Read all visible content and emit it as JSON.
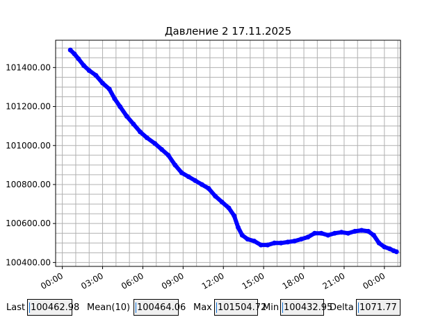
{
  "chart_data": {
    "type": "scatter",
    "title": "Давление 2 17.11.2025",
    "xlabel": "",
    "ylabel": "",
    "x_ticks": [
      "00:00",
      "03:00",
      "06:00",
      "09:00",
      "12:00",
      "15:00",
      "18:00",
      "21:00",
      "00:00"
    ],
    "x_tick_hours": [
      0,
      3,
      6,
      9,
      12,
      15,
      18,
      21,
      24
    ],
    "xlim_hours": [
      -0.5,
      25.2
    ],
    "y_ticks": [
      "100400.00",
      "100600.00",
      "100800.00",
      "101000.00",
      "101200.00",
      "101400.00"
    ],
    "y_tick_values": [
      100400,
      100600,
      100800,
      101000,
      101200,
      101400
    ],
    "ylim": [
      100380,
      101540
    ],
    "grid": true,
    "series_color": "#0000ff",
    "points": [
      [
        0.6,
        101490
      ],
      [
        0.9,
        101470
      ],
      [
        1.2,
        101445
      ],
      [
        1.6,
        101410
      ],
      [
        2.0,
        101385
      ],
      [
        2.5,
        101360
      ],
      [
        3.0,
        101320
      ],
      [
        3.5,
        101290
      ],
      [
        3.9,
        101240
      ],
      [
        4.3,
        101200
      ],
      [
        4.8,
        101150
      ],
      [
        5.3,
        101110
      ],
      [
        5.8,
        101070
      ],
      [
        6.3,
        101040
      ],
      [
        6.9,
        101010
      ],
      [
        7.4,
        100980
      ],
      [
        7.9,
        100950
      ],
      [
        8.4,
        100900
      ],
      [
        8.9,
        100860
      ],
      [
        9.4,
        100840
      ],
      [
        9.9,
        100820
      ],
      [
        10.4,
        100800
      ],
      [
        10.9,
        100780
      ],
      [
        11.4,
        100740
      ],
      [
        11.9,
        100710
      ],
      [
        12.4,
        100680
      ],
      [
        12.8,
        100640
      ],
      [
        13.1,
        100580
      ],
      [
        13.4,
        100540
      ],
      [
        13.8,
        100520
      ],
      [
        14.3,
        100510
      ],
      [
        14.8,
        100490
      ],
      [
        15.3,
        100490
      ],
      [
        15.8,
        100500
      ],
      [
        16.3,
        100500
      ],
      [
        16.8,
        100505
      ],
      [
        17.3,
        100510
      ],
      [
        17.8,
        100520
      ],
      [
        18.3,
        100530
      ],
      [
        18.8,
        100550
      ],
      [
        19.3,
        100550
      ],
      [
        19.8,
        100540
      ],
      [
        20.3,
        100550
      ],
      [
        20.8,
        100555
      ],
      [
        21.3,
        100550
      ],
      [
        21.8,
        100560
      ],
      [
        22.3,
        100565
      ],
      [
        22.8,
        100560
      ],
      [
        23.2,
        100540
      ],
      [
        23.6,
        100500
      ],
      [
        24.0,
        100480
      ],
      [
        24.4,
        100470
      ],
      [
        24.7,
        100460
      ],
      [
        24.9,
        100455
      ]
    ]
  },
  "stats": [
    {
      "label": "Last",
      "value": "100462.98"
    },
    {
      "label": "Mean(10)",
      "value": "100464.06"
    },
    {
      "label": "Max",
      "value": "101504.72"
    },
    {
      "label": "Min",
      "value": "100432.95"
    },
    {
      "label": "Delta",
      "value": "1071.77"
    }
  ]
}
